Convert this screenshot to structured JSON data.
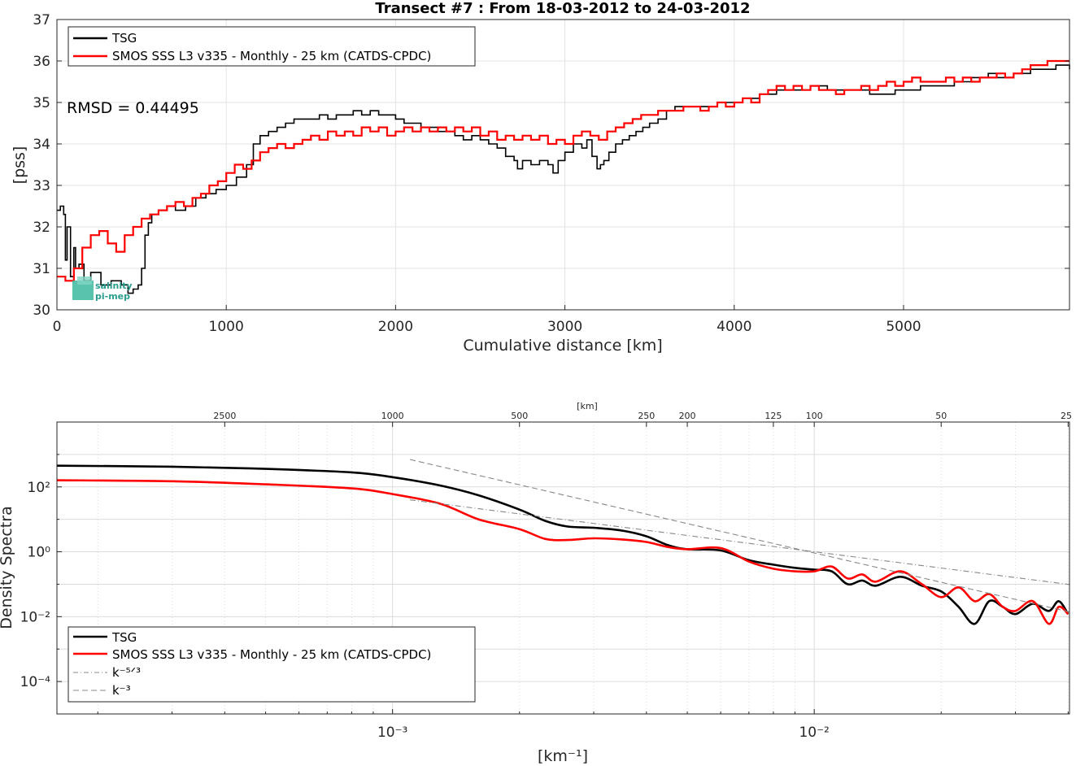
{
  "chart_data": [
    {
      "type": "line",
      "title": "Transect #7 : From 18-03-2012 to 24-03-2012",
      "xlabel": "Cumulative distance [km]",
      "ylabel": "[pss]",
      "xlim": [
        0,
        5980
      ],
      "ylim": [
        30,
        37
      ],
      "xticks": [
        "0",
        "1000",
        "2000",
        "3000",
        "4000",
        "5000"
      ],
      "yticks": [
        "30",
        "31",
        "32",
        "33",
        "34",
        "35",
        "36",
        "37"
      ],
      "grid": true,
      "legend_position": "top-left",
      "annotation": "RMSD = 0.44495",
      "logo_text": [
        "salinity",
        "pi-mep"
      ],
      "series": [
        {
          "name": "TSG",
          "color": "#000000",
          "x": [
            0,
            20,
            40,
            50,
            60,
            80,
            100,
            110,
            130,
            160,
            200,
            260,
            320,
            380,
            420,
            450,
            480,
            500,
            520,
            540,
            560,
            600,
            650,
            700,
            760,
            820,
            880,
            940,
            1000,
            1060,
            1120,
            1160,
            1200,
            1250,
            1300,
            1350,
            1400,
            1450,
            1500,
            1550,
            1600,
            1650,
            1700,
            1750,
            1800,
            1850,
            1900,
            1950,
            2000,
            2050,
            2100,
            2150,
            2200,
            2250,
            2300,
            2350,
            2400,
            2450,
            2500,
            2550,
            2600,
            2650,
            2700,
            2720,
            2750,
            2800,
            2850,
            2900,
            2930,
            2960,
            3000,
            3050,
            3100,
            3130,
            3160,
            3190,
            3210,
            3230,
            3260,
            3300,
            3340,
            3380,
            3420,
            3460,
            3500,
            3550,
            3600,
            3650,
            3700,
            3750,
            3800,
            3850,
            3900,
            3950,
            4000,
            4050,
            4100,
            4150,
            4200,
            4250,
            4300,
            4350,
            4400,
            4450,
            4500,
            4550,
            4600,
            4650,
            4700,
            4750,
            4800,
            4850,
            4900,
            4950,
            5000,
            5050,
            5100,
            5150,
            5200,
            5250,
            5300,
            5350,
            5400,
            5450,
            5500,
            5550,
            5600,
            5650,
            5700,
            5750,
            5800,
            5850,
            5900,
            5950,
            5980
          ],
          "y": [
            32.4,
            32.5,
            32.3,
            31.2,
            32.0,
            30.8,
            31.5,
            31.0,
            31.1,
            30.7,
            30.9,
            30.6,
            30.7,
            30.6,
            30.4,
            30.5,
            30.6,
            31.0,
            31.8,
            32.1,
            32.3,
            32.4,
            32.5,
            32.4,
            32.5,
            32.7,
            32.8,
            32.9,
            33.0,
            33.2,
            33.5,
            34.0,
            34.2,
            34.3,
            34.4,
            34.5,
            34.6,
            34.6,
            34.6,
            34.7,
            34.6,
            34.7,
            34.7,
            34.8,
            34.7,
            34.8,
            34.7,
            34.7,
            34.6,
            34.5,
            34.5,
            34.4,
            34.4,
            34.3,
            34.3,
            34.2,
            34.1,
            34.2,
            34.1,
            34.0,
            33.9,
            33.7,
            33.6,
            33.4,
            33.6,
            33.5,
            33.6,
            33.5,
            33.3,
            33.6,
            33.8,
            34.0,
            33.9,
            34.1,
            33.7,
            33.4,
            33.5,
            33.6,
            33.8,
            34.0,
            34.1,
            34.2,
            34.3,
            34.4,
            34.5,
            34.6,
            34.8,
            34.9,
            34.9,
            34.9,
            34.9,
            34.9,
            35.0,
            35.0,
            35.0,
            35.1,
            35.1,
            35.2,
            35.2,
            35.3,
            35.3,
            35.3,
            35.3,
            35.4,
            35.4,
            35.3,
            35.3,
            35.3,
            35.3,
            35.3,
            35.2,
            35.2,
            35.2,
            35.3,
            35.3,
            35.3,
            35.4,
            35.4,
            35.4,
            35.4,
            35.5,
            35.5,
            35.6,
            35.6,
            35.7,
            35.6,
            35.6,
            35.7,
            35.7,
            35.8,
            35.8,
            35.8,
            35.9,
            35.9,
            35.8
          ]
        },
        {
          "name": "SMOS SSS L3 v335 - Monthly - 25 km (CATDS-CPDC)",
          "color": "#ff0000",
          "x": [
            0,
            50,
            100,
            150,
            200,
            250,
            300,
            350,
            400,
            450,
            500,
            550,
            600,
            650,
            700,
            750,
            800,
            850,
            900,
            950,
            1000,
            1050,
            1100,
            1150,
            1200,
            1250,
            1300,
            1350,
            1400,
            1450,
            1500,
            1550,
            1600,
            1650,
            1700,
            1750,
            1800,
            1850,
            1900,
            1950,
            2000,
            2050,
            2100,
            2150,
            2200,
            2250,
            2300,
            2350,
            2400,
            2450,
            2500,
            2550,
            2600,
            2650,
            2700,
            2750,
            2800,
            2850,
            2900,
            2950,
            3000,
            3050,
            3100,
            3150,
            3200,
            3250,
            3300,
            3350,
            3400,
            3450,
            3500,
            3550,
            3600,
            3650,
            3700,
            3750,
            3800,
            3850,
            3900,
            3950,
            4000,
            4050,
            4100,
            4150,
            4200,
            4250,
            4300,
            4350,
            4400,
            4450,
            4500,
            4550,
            4600,
            4650,
            4700,
            4750,
            4800,
            4850,
            4900,
            4950,
            5000,
            5050,
            5100,
            5150,
            5200,
            5250,
            5300,
            5350,
            5400,
            5450,
            5500,
            5550,
            5600,
            5650,
            5700,
            5750,
            5800,
            5850,
            5900,
            5950,
            5980
          ],
          "y": [
            30.8,
            30.7,
            31.0,
            31.5,
            31.8,
            31.9,
            31.6,
            31.4,
            31.8,
            32.0,
            32.2,
            32.3,
            32.4,
            32.5,
            32.6,
            32.5,
            32.7,
            32.8,
            33.0,
            33.1,
            33.3,
            33.5,
            33.4,
            33.6,
            33.8,
            33.9,
            34.0,
            33.9,
            34.0,
            34.1,
            34.2,
            34.1,
            34.3,
            34.2,
            34.3,
            34.2,
            34.4,
            34.3,
            34.4,
            34.2,
            34.3,
            34.4,
            34.3,
            34.4,
            34.3,
            34.4,
            34.3,
            34.4,
            34.3,
            34.4,
            34.2,
            34.3,
            34.1,
            34.2,
            34.1,
            34.2,
            34.1,
            34.2,
            34.0,
            34.1,
            34.0,
            34.2,
            34.3,
            34.2,
            34.1,
            34.3,
            34.4,
            34.5,
            34.6,
            34.7,
            34.7,
            34.8,
            34.8,
            34.8,
            34.9,
            34.9,
            34.8,
            34.9,
            35.0,
            34.9,
            35.0,
            35.1,
            35.0,
            35.2,
            35.3,
            35.4,
            35.3,
            35.4,
            35.3,
            35.4,
            35.3,
            35.3,
            35.2,
            35.3,
            35.3,
            35.4,
            35.3,
            35.4,
            35.5,
            35.4,
            35.5,
            35.6,
            35.5,
            35.5,
            35.5,
            35.6,
            35.5,
            35.6,
            35.5,
            35.6,
            35.6,
            35.7,
            35.6,
            35.7,
            35.8,
            35.9,
            35.9,
            36.0,
            36.0,
            36.0,
            36.0
          ]
        }
      ]
    },
    {
      "type": "line",
      "xlabel": "[km⁻¹]",
      "ylabel": "Density Spectra",
      "xscale": "log",
      "yscale": "log",
      "xlim": [
        0.00016,
        0.0403
      ],
      "ylim": [
        1e-05,
        10000
      ],
      "xticks": [
        "10⁻³",
        "10⁻²"
      ],
      "yticks": [
        "10⁻⁴",
        "10⁻²",
        "10⁰",
        "10²"
      ],
      "top_axis_label": "[km]",
      "top_ticks": [
        "2500",
        "1000",
        "500",
        "250",
        "200",
        "125",
        "100",
        "50",
        "25"
      ],
      "top_tick_values_km": [
        2500,
        1000,
        500,
        250,
        200,
        125,
        100,
        50,
        25
      ],
      "grid": true,
      "legend_position": "bottom-left",
      "series": [
        {
          "name": "TSG",
          "color": "#000000",
          "x": [
            0.00016,
            0.0003,
            0.0005,
            0.0008,
            0.001,
            0.0013,
            0.0016,
            0.002,
            0.0023,
            0.0026,
            0.003,
            0.0035,
            0.004,
            0.0045,
            0.005,
            0.006,
            0.007,
            0.008,
            0.009,
            0.01,
            0.011,
            0.012,
            0.013,
            0.014,
            0.016,
            0.018,
            0.02,
            0.022,
            0.024,
            0.026,
            0.028,
            0.03,
            0.033,
            0.036,
            0.038,
            0.04
          ],
          "y": [
            450,
            420,
            360,
            280,
            200,
            110,
            55,
            20,
            9,
            6,
            5.5,
            4.5,
            3.0,
            1.6,
            1.2,
            1.1,
            0.55,
            0.4,
            0.32,
            0.28,
            0.25,
            0.1,
            0.13,
            0.09,
            0.17,
            0.09,
            0.06,
            0.02,
            0.006,
            0.03,
            0.02,
            0.012,
            0.025,
            0.015,
            0.03,
            0.012
          ]
        },
        {
          "name": "SMOS SSS L3 v335 - Monthly - 25 km (CATDS-CPDC)",
          "color": "#ff0000",
          "x": [
            0.00016,
            0.0003,
            0.0005,
            0.0008,
            0.001,
            0.0013,
            0.0016,
            0.002,
            0.0023,
            0.0026,
            0.003,
            0.0035,
            0.004,
            0.0045,
            0.005,
            0.006,
            0.007,
            0.008,
            0.009,
            0.01,
            0.011,
            0.012,
            0.013,
            0.014,
            0.016,
            0.018,
            0.02,
            0.022,
            0.024,
            0.026,
            0.028,
            0.03,
            0.033,
            0.036,
            0.038,
            0.04
          ],
          "y": [
            160,
            150,
            120,
            90,
            60,
            30,
            10,
            5,
            2.5,
            2.3,
            2.6,
            2.4,
            2.0,
            1.4,
            1.2,
            1.3,
            0.5,
            0.3,
            0.25,
            0.25,
            0.35,
            0.15,
            0.2,
            0.12,
            0.25,
            0.1,
            0.04,
            0.08,
            0.03,
            0.05,
            0.02,
            0.015,
            0.03,
            0.006,
            0.02,
            0.012
          ]
        },
        {
          "name": "k⁻⁵ᐟ³",
          "color": "#888888",
          "dash": "dashdot",
          "x": [
            0.0011,
            0.0403
          ],
          "y": [
            40,
            0.098
          ]
        },
        {
          "name": "k⁻³",
          "color": "#888888",
          "dash": "dash",
          "x": [
            0.0011,
            0.0403
          ],
          "y": [
            700,
            0.014
          ]
        }
      ]
    }
  ]
}
